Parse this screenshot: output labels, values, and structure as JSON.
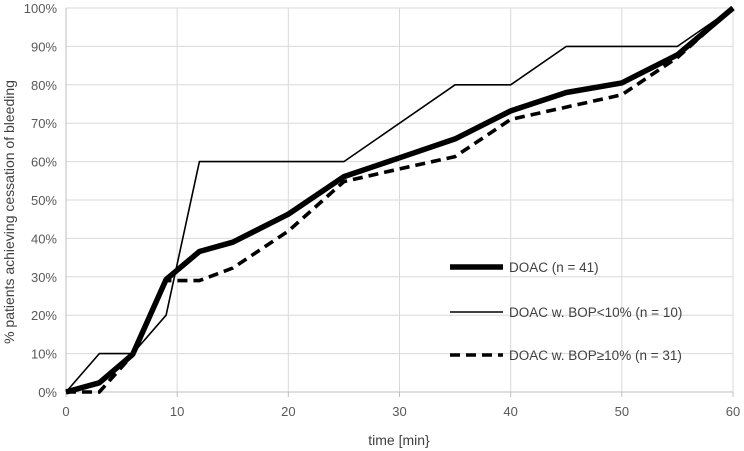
{
  "chart_data": {
    "type": "line",
    "title": "",
    "xlabel": "time [min}",
    "ylabel": "% patients achieving cessation of bleeding",
    "xlim": [
      0,
      60
    ],
    "ylim": [
      0,
      100
    ],
    "x_ticks": [
      0,
      10,
      20,
      30,
      40,
      50,
      60
    ],
    "y_ticks": [
      0,
      10,
      20,
      30,
      40,
      50,
      60,
      70,
      80,
      90,
      100
    ],
    "y_tick_labels": [
      "0%",
      "10%",
      "20%",
      "30%",
      "40%",
      "50%",
      "60%",
      "70%",
      "80%",
      "90%",
      "100%"
    ],
    "grid": true,
    "legend_position": "right",
    "series": [
      {
        "name": "DOAC (n = 41)",
        "style": "thick-solid",
        "color": "#000000",
        "x": [
          0,
          3,
          6,
          9,
          12,
          15,
          20,
          25,
          30,
          35,
          40,
          45,
          50,
          55,
          60
        ],
        "y": [
          0,
          2.4,
          9.8,
          29.3,
          36.6,
          39.0,
          46.3,
          56.1,
          61.0,
          65.9,
          73.2,
          78.0,
          80.5,
          87.8,
          100
        ]
      },
      {
        "name": "DOAC w. BOP<10% (n = 10)",
        "style": "thin-solid",
        "color": "#000000",
        "x": [
          0,
          3,
          6,
          9,
          12,
          25,
          35,
          40,
          45,
          55,
          60
        ],
        "y": [
          0,
          10,
          10,
          20,
          60,
          60,
          80,
          80,
          90,
          90,
          100
        ]
      },
      {
        "name": "DOAC w. BOP≥10% (n = 31)",
        "style": "dashed",
        "color": "#000000",
        "x": [
          0,
          3,
          6,
          9,
          12,
          15,
          20,
          25,
          30,
          35,
          40,
          45,
          50,
          55,
          60
        ],
        "y": [
          0,
          0,
          9.7,
          29.0,
          29.0,
          32.3,
          41.9,
          54.8,
          58.1,
          61.3,
          71.0,
          74.2,
          77.4,
          87.1,
          100
        ]
      }
    ]
  }
}
